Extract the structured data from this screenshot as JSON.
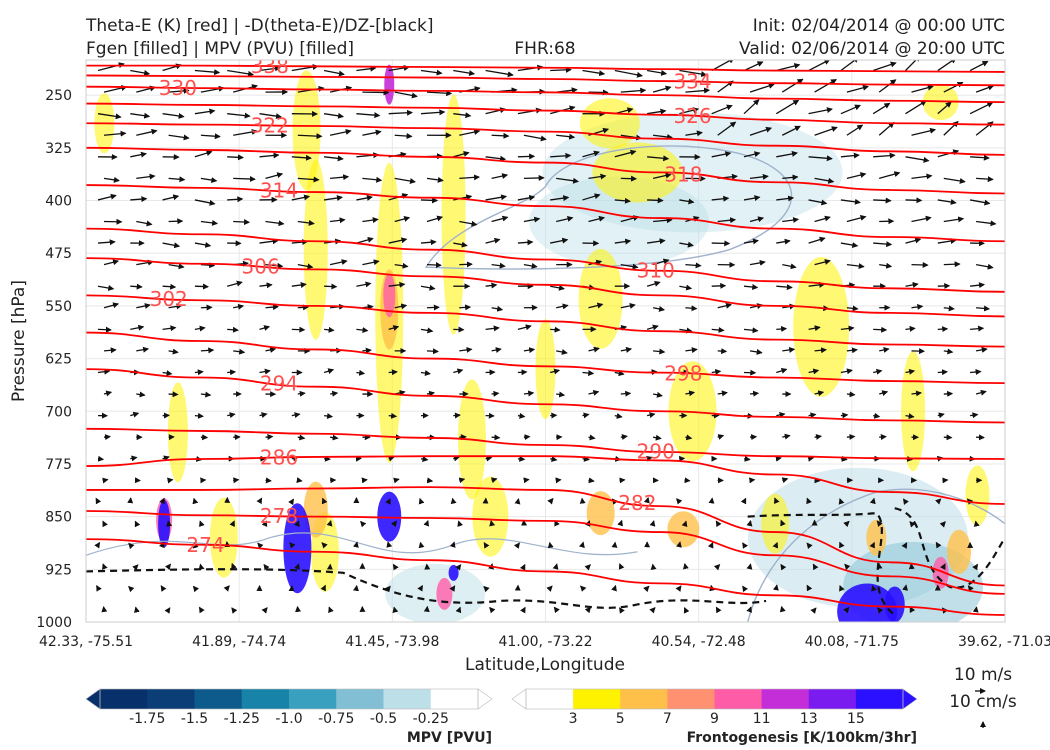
{
  "header": {
    "title_left_1": "Theta-E (K) [red] | -D(theta-E)/DZ-[black]",
    "title_left_2": "Fgen [filled] | MPV (PVU) [filled]",
    "title_center": "FHR:68",
    "title_right_1": "Init: 02/04/2014 @ 00:00 UTC",
    "title_right_2": "Valid: 02/06/2014 @ 20:00 UTC"
  },
  "chart_data": {
    "type": "cross-section",
    "xlabel": "Latitude,Longitude",
    "ylabel": "Pressure [hPa]",
    "x_ticks": [
      "42.33, -75.51",
      "41.89, -74.74",
      "41.45, -73.98",
      "41.00, -73.22",
      "40.54, -72.48",
      "40.08, -71.75",
      "39.62, -71.03"
    ],
    "y_ticks": [
      250,
      325,
      400,
      475,
      550,
      625,
      700,
      775,
      850,
      925,
      1000
    ],
    "ylim": [
      1000,
      200
    ],
    "theta_e_contours": [
      {
        "label": "274",
        "y": [
          882,
          890,
          900,
          912,
          928,
          945,
          962,
          978,
          990
        ]
      },
      {
        "label": "278",
        "y": [
          842,
          848,
          850,
          852,
          856,
          872,
          905,
          935,
          960
        ]
      },
      {
        "label": "282",
        "y": [
          812,
          812,
          810,
          808,
          812,
          835,
          872,
          915,
          948
        ]
      },
      {
        "label": "286",
        "y": [
          778,
          768,
          765,
          764,
          764,
          770,
          790,
          815,
          832
        ]
      },
      {
        "label": "290",
        "y": [
          725,
          728,
          732,
          738,
          748,
          758,
          764,
          767,
          768
        ]
      },
      {
        "label": "294",
        "y": [
          640,
          652,
          665,
          678,
          690,
          700,
          708,
          713,
          716
        ]
      },
      {
        "label": "298",
        "y": [
          588,
          600,
          612,
          625,
          636,
          645,
          652,
          657,
          660
        ]
      },
      {
        "label": "302",
        "y": [
          535,
          542,
          550,
          560,
          572,
          586,
          598,
          605,
          608
        ]
      },
      {
        "label": "306",
        "y": [
          482,
          490,
          498,
          508,
          520,
          535,
          550,
          560,
          565
        ]
      },
      {
        "label": "310",
        "y": [
          440,
          448,
          458,
          470,
          484,
          500,
          515,
          525,
          530
        ]
      },
      {
        "label": "314",
        "y": [
          378,
          382,
          388,
          396,
          408,
          425,
          440,
          452,
          458
        ]
      },
      {
        "label": "318",
        "y": [
          325,
          328,
          332,
          338,
          346,
          360,
          374,
          385,
          390
        ]
      },
      {
        "label": "322",
        "y": [
          290,
          292,
          294,
          297,
          302,
          312,
          322,
          330,
          335
        ]
      },
      {
        "label": "326",
        "y": [
          262,
          264,
          266,
          268,
          272,
          278,
          285,
          290,
          292
        ]
      },
      {
        "label": "330",
        "y": [
          238,
          240,
          242,
          244,
          246,
          250,
          255,
          258,
          260
        ]
      },
      {
        "label": "334",
        "y": [
          222,
          223,
          224,
          225,
          227,
          230,
          233,
          235,
          236
        ]
      },
      {
        "label": "338",
        "y": [
          208,
          208,
          209,
          210,
          211,
          213,
          215,
          216,
          217
        ]
      }
    ],
    "mpv_colorbar": {
      "label": "MPV [PVU]",
      "ticks": [
        "-1.75",
        "-1.5",
        "-1.25",
        "-1.0",
        "-0.75",
        "-0.5",
        "-0.25"
      ],
      "colors": [
        "#08306b",
        "#0b3e76",
        "#0d5b8c",
        "#1883a8",
        "#3aa0c0",
        "#82bfd4",
        "#bddfe8",
        "#ffffff"
      ]
    },
    "fgen_colorbar": {
      "label": "Frontogenesis [K/100km/3hr]",
      "ticks": [
        "3",
        "5",
        "7",
        "9",
        "11",
        "13",
        "15"
      ],
      "colors": [
        "#ffffff",
        "#fff200",
        "#ffc04a",
        "#ff9070",
        "#ff5ca8",
        "#c42ed8",
        "#7a1cf0",
        "#2a10ff"
      ]
    },
    "wind_key": {
      "label_1": "10 m/s",
      "label_2": "10 cm/s"
    },
    "colors": {
      "theta_e": "#ff0000",
      "dthetae": "#000000",
      "mpv_line": "#9fb2cc"
    }
  }
}
